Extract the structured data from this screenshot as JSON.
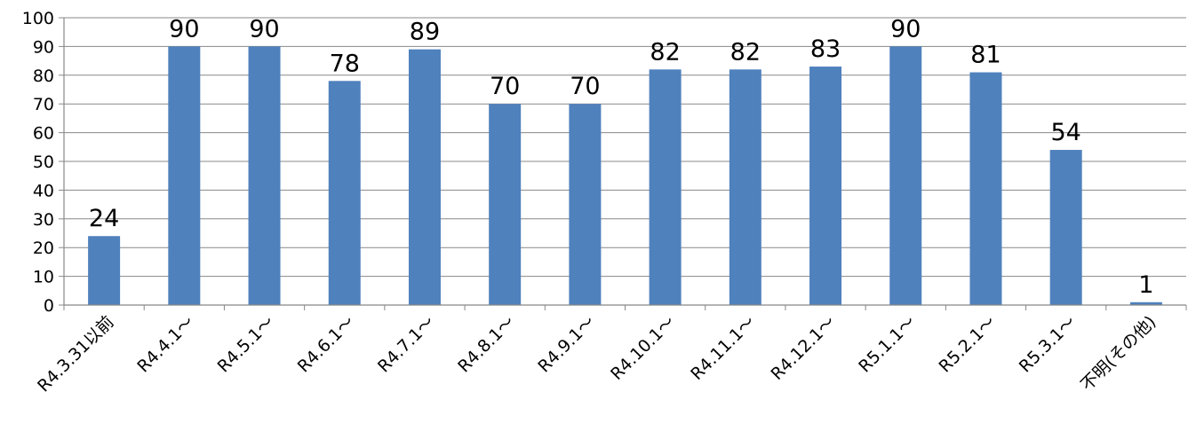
{
  "chart_data": {
    "type": "bar",
    "categories": [
      "R4.3.31以前",
      "R4.4.1〜",
      "R4.5.1〜",
      "R4.6.1〜",
      "R4.7.1〜",
      "R4.8.1〜",
      "R4.9.1〜",
      "R4.10.1〜",
      "R4.11.1〜",
      "R4.12.1〜",
      "R5.1.1〜",
      "R5.2.1〜",
      "R5.3.1〜",
      "不明(その他)"
    ],
    "values": [
      24,
      90,
      90,
      78,
      89,
      70,
      70,
      82,
      82,
      83,
      90,
      81,
      54,
      1
    ],
    "title": "",
    "xlabel": "",
    "ylabel": "",
    "ylim": [
      0,
      100
    ],
    "yticks": [
      0,
      10,
      20,
      30,
      40,
      50,
      60,
      70,
      80,
      90,
      100
    ],
    "grid": true,
    "legend": "none",
    "bar_color": "#4F81BD",
    "data_labels": true
  }
}
